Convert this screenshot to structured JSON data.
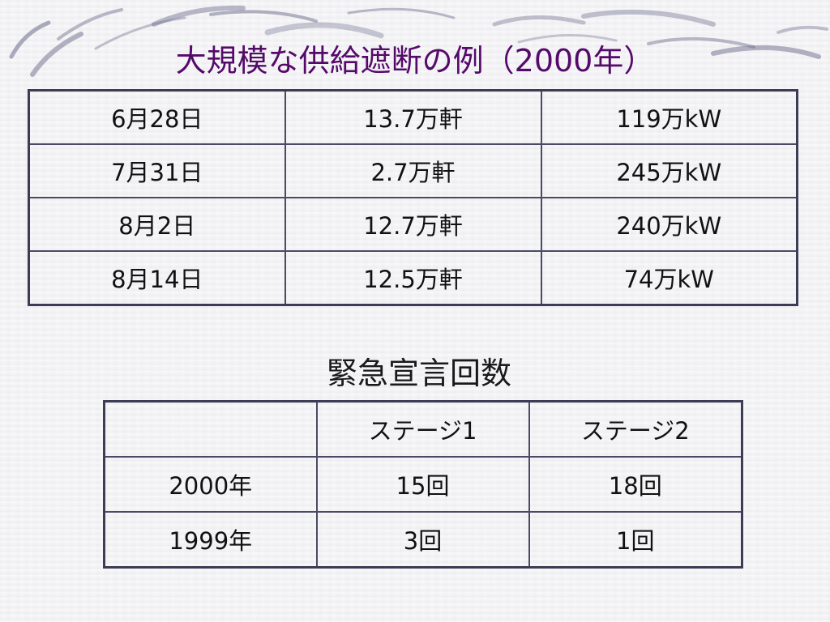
{
  "title": "大規模な供給遮断の例（2000年）",
  "supply_cuts": {
    "rows": [
      {
        "date": "6月28日",
        "households": "13.7万軒",
        "power": "119万kW"
      },
      {
        "date": "7月31日",
        "households": "2.7万軒",
        "power": "245万kW"
      },
      {
        "date": "8月2日",
        "households": "12.7万軒",
        "power": "240万kW"
      },
      {
        "date": "8月14日",
        "households": "12.5万軒",
        "power": "74万kW"
      }
    ]
  },
  "emergency": {
    "heading": "緊急宣言回数",
    "columns": [
      "",
      "ステージ1",
      "ステージ2"
    ],
    "rows": [
      {
        "year": "2000年",
        "stage1": "15回",
        "stage2": "18回"
      },
      {
        "year": "1999年",
        "stage1": "3回",
        "stage2": "1回"
      }
    ]
  },
  "colors": {
    "title": "#550a6a",
    "border": "#4a4a66",
    "decor": "#6b6b8c"
  }
}
